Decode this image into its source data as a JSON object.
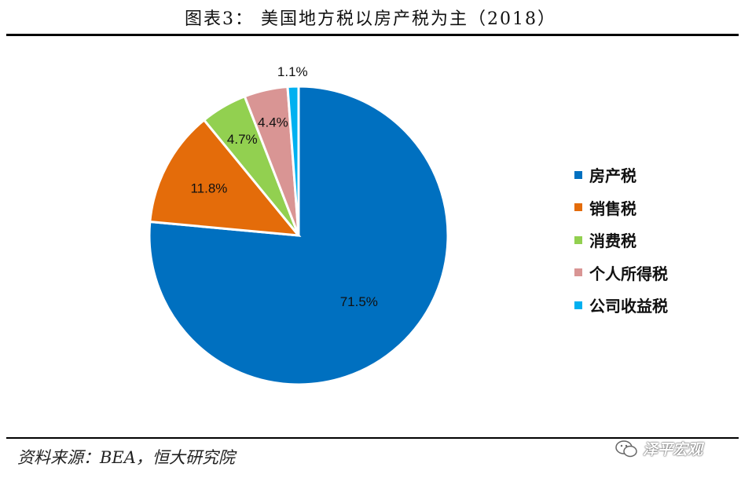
{
  "title": "图表3：  美国地方税以房产税为主（2018）",
  "source": "资料来源：BEA，恒大研究院",
  "watermark": "泽平宏观",
  "chart_data": {
    "type": "pie",
    "title": "图表3：  美国地方税以房产税为主（2018）",
    "categories": [
      "房产税",
      "销售税",
      "消费税",
      "个人所得税",
      "公司收益税"
    ],
    "values": [
      71.5,
      11.8,
      4.7,
      4.4,
      1.1
    ],
    "labels": [
      "71.5%",
      "11.8%",
      "4.7%",
      "4.4%",
      "1.1%"
    ],
    "colors": [
      "#0070C0",
      "#E46C0A",
      "#92D050",
      "#D99594",
      "#00B0F0"
    ],
    "legend_position": "right",
    "start_angle": "12 o'clock",
    "direction": "clockwise"
  }
}
